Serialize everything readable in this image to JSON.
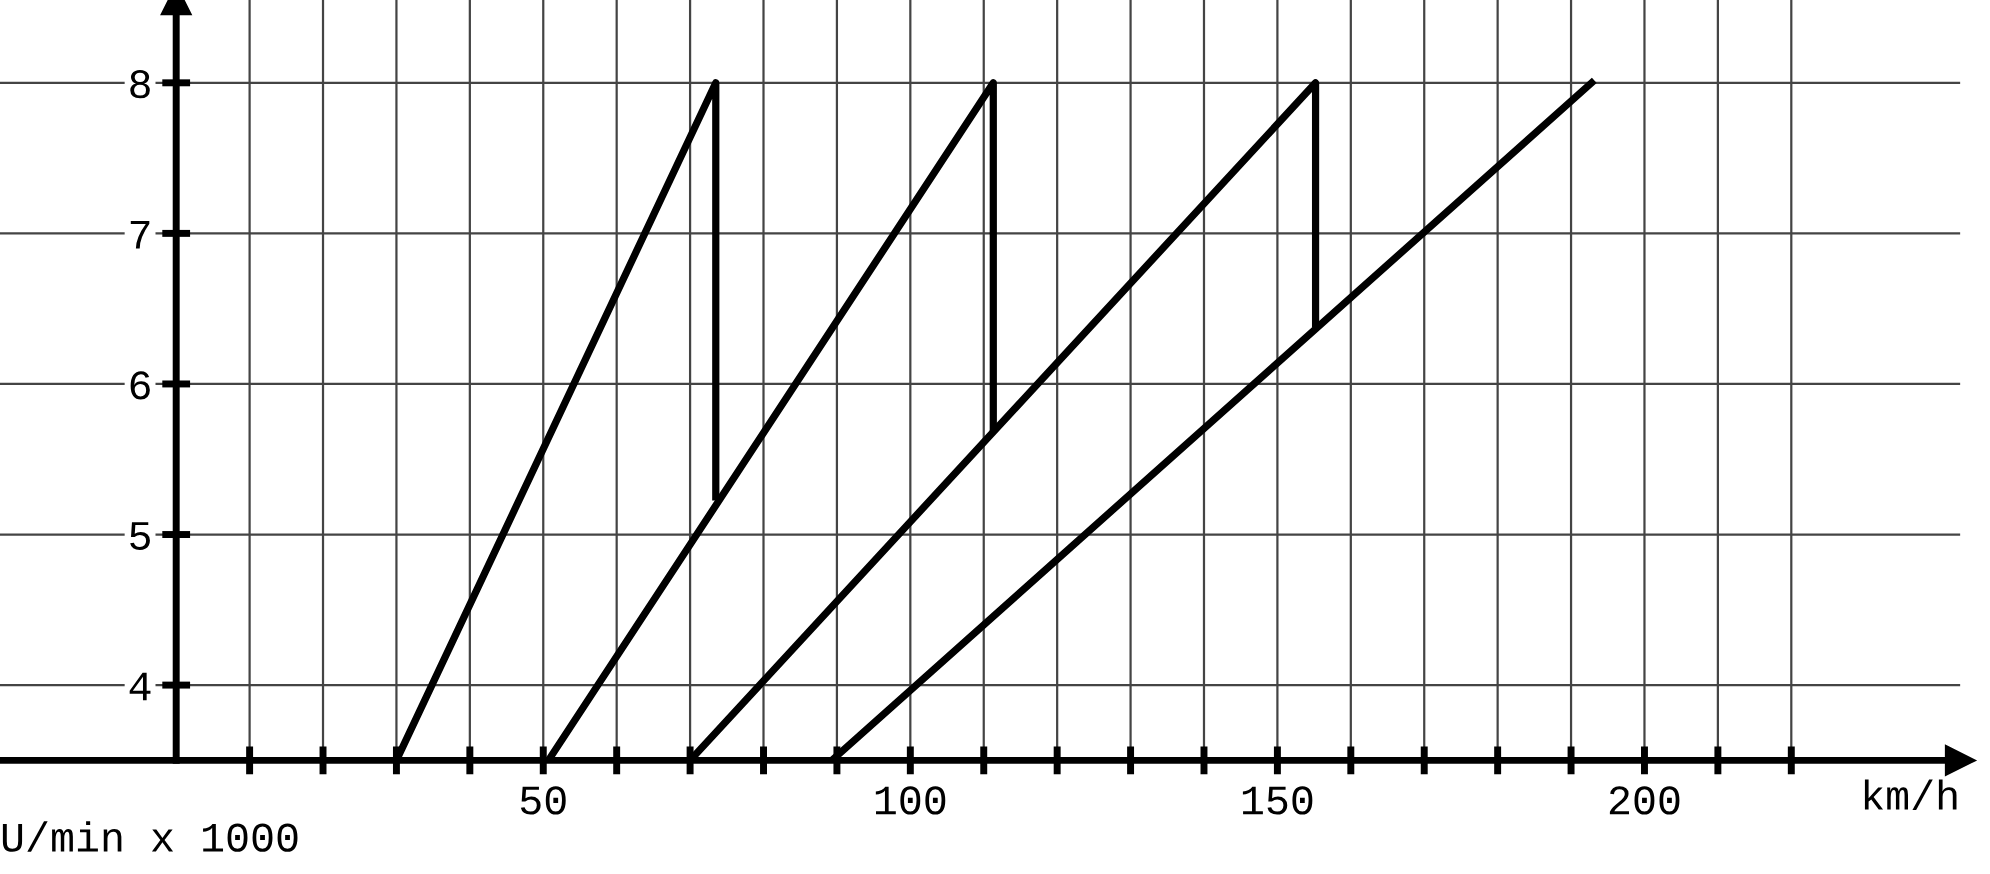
{
  "chart_data": {
    "type": "line",
    "xlabel": "km/h",
    "annotations": [
      "U/min x 1000"
    ],
    "series": [
      {
        "color": "#000000",
        "x": [
          30,
          73.5,
          73.5
        ],
        "values": [
          3.5,
          8,
          5.25
        ]
      },
      {
        "color": "#000000",
        "x": [
          50.7,
          111.3,
          111.3
        ],
        "values": [
          3.5,
          8,
          5.7
        ]
      },
      {
        "color": "#000000",
        "x": [
          70,
          155.2,
          155.2
        ],
        "values": [
          3.5,
          8,
          6.4
        ]
      },
      {
        "color": "#000000",
        "x": [
          89.3,
          192.8
        ],
        "values": [
          3.5,
          8
        ]
      }
    ],
    "xlim": [
      -24,
      243
    ],
    "ylim": [
      3.5,
      8.55
    ],
    "xticks": [
      {
        "value": 10,
        "label": null
      },
      {
        "value": 20,
        "label": null
      },
      {
        "value": 30,
        "label": null
      },
      {
        "value": 40,
        "label": null
      },
      50,
      {
        "value": 60,
        "label": null
      },
      {
        "value": 70,
        "label": null
      },
      {
        "value": 80,
        "label": null
      },
      {
        "value": 90,
        "label": null
      },
      100,
      {
        "value": 110,
        "label": null
      },
      {
        "value": 120,
        "label": null
      },
      {
        "value": 130,
        "label": null
      },
      {
        "value": 140,
        "label": null
      },
      150,
      {
        "value": 160,
        "label": null
      },
      {
        "value": 170,
        "label": null
      },
      {
        "value": 180,
        "label": null
      },
      {
        "value": 190,
        "label": null
      },
      200,
      {
        "value": 210,
        "label": null
      },
      {
        "value": 220,
        "label": null
      }
    ],
    "yticks": [
      4,
      5,
      6,
      7,
      8
    ],
    "grid": true,
    "marker": "none",
    "line_style": "solid",
    "legend": false
  }
}
